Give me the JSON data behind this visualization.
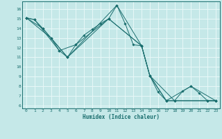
{
  "xlabel": "Humidex (Indice chaleur)",
  "xlim": [
    -0.5,
    23.5
  ],
  "ylim": [
    5.7,
    16.8
  ],
  "yticks": [
    6,
    7,
    8,
    9,
    10,
    11,
    12,
    13,
    14,
    15,
    16
  ],
  "xticks": [
    0,
    1,
    2,
    3,
    4,
    5,
    6,
    7,
    8,
    9,
    10,
    11,
    12,
    13,
    14,
    15,
    16,
    17,
    18,
    19,
    20,
    21,
    22,
    23
  ],
  "background_color": "#c5e8e8",
  "grid_color": "#e8f8f8",
  "line_color": "#1a6e6e",
  "lines": [
    {
      "x": [
        0,
        1,
        2,
        3,
        4,
        5,
        6,
        7,
        8,
        9,
        10,
        11,
        12,
        13,
        14,
        15,
        16,
        17,
        18,
        19,
        20,
        21,
        22,
        23
      ],
      "y": [
        15.1,
        14.9,
        14.0,
        13.0,
        11.7,
        11.0,
        12.3,
        13.3,
        13.9,
        14.5,
        15.0,
        16.4,
        14.5,
        12.3,
        12.2,
        9.1,
        7.4,
        6.5,
        6.5,
        7.5,
        8.0,
        7.3,
        6.5,
        6.5
      ]
    },
    {
      "x": [
        0,
        2,
        5,
        10,
        14,
        15,
        18,
        22,
        23
      ],
      "y": [
        15.1,
        14.0,
        11.0,
        15.0,
        12.2,
        9.1,
        6.5,
        6.5,
        6.5
      ]
    },
    {
      "x": [
        0,
        3,
        5,
        11,
        14,
        15,
        17,
        20,
        23
      ],
      "y": [
        15.1,
        13.0,
        11.0,
        16.4,
        12.2,
        9.1,
        6.5,
        8.0,
        6.5
      ]
    },
    {
      "x": [
        0,
        1,
        4,
        6,
        10,
        14,
        15,
        17,
        22,
        23
      ],
      "y": [
        15.1,
        14.9,
        11.7,
        12.3,
        15.0,
        12.2,
        9.1,
        6.5,
        6.5,
        6.5
      ]
    }
  ]
}
